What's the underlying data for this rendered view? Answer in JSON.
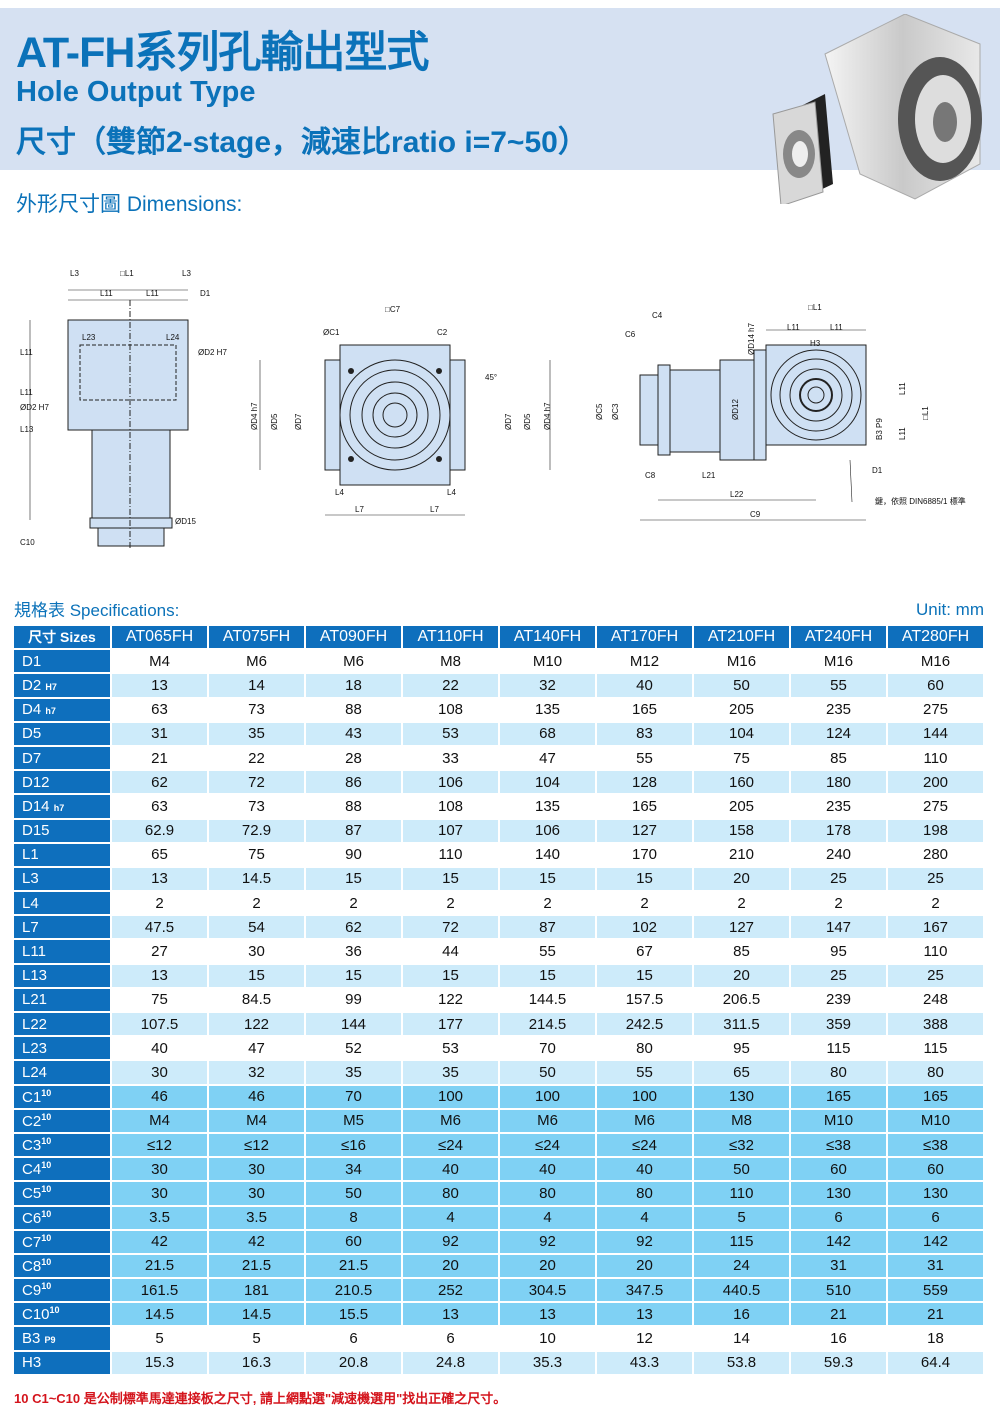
{
  "header": {
    "title": "AT-FH系列孔輸出型式",
    "subtitle": "Hole Output Type",
    "subtitle2": "尺寸（雙節2-stage，減速比ratio i=7~50）"
  },
  "dimensions_heading": "外形尺寸圖 Dimensions:",
  "drawings": {
    "view1": [
      "L3",
      "□L1",
      "L3",
      "L11",
      "L11",
      "D1",
      "L11",
      "L23",
      "L24",
      "ØD2 H7",
      "L11",
      "ØD2 H7",
      "L13",
      "ØD15",
      "C10"
    ],
    "view2": [
      "□C7",
      "ØC1",
      "C2",
      "ØD4 h7",
      "ØD5",
      "ØD7",
      "ØD7",
      "ØD5",
      "ØD4 h7",
      "45°",
      "L4",
      "L4",
      "L7",
      "L7"
    ],
    "view3": [
      "C4",
      "C6",
      "□L1",
      "L11",
      "L11",
      "H3",
      "ØD14 h7",
      "ØC5",
      "ØC3",
      "ØD12",
      "L11",
      "L11",
      "□L1",
      "B3 P9",
      "D1",
      "C8",
      "L21",
      "L22",
      "C9",
      "鍵，依照 DIN6885/1 標準"
    ]
  },
  "specs": {
    "title": "規格表 Specifications:",
    "unit": "Unit: mm",
    "corner": "尺寸 Sizes",
    "models": [
      "AT065FH",
      "AT075FH",
      "AT090FH",
      "AT110FH",
      "AT140FH",
      "AT170FH",
      "AT210FH",
      "AT240FH",
      "AT280FH"
    ],
    "rows": [
      {
        "label": "D1",
        "suffix": "",
        "values": [
          "M4",
          "M6",
          "M6",
          "M8",
          "M10",
          "M12",
          "M16",
          "M16",
          "M16"
        ]
      },
      {
        "label": "D2",
        "suffix": "H7",
        "values": [
          "13",
          "14",
          "18",
          "22",
          "32",
          "40",
          "50",
          "55",
          "60"
        ]
      },
      {
        "label": "D4",
        "suffix": "h7",
        "values": [
          "63",
          "73",
          "88",
          "108",
          "135",
          "165",
          "205",
          "235",
          "275"
        ]
      },
      {
        "label": "D5",
        "suffix": "",
        "values": [
          "31",
          "35",
          "43",
          "53",
          "68",
          "83",
          "104",
          "124",
          "144"
        ]
      },
      {
        "label": "D7",
        "suffix": "",
        "values": [
          "21",
          "22",
          "28",
          "33",
          "47",
          "55",
          "75",
          "85",
          "110"
        ]
      },
      {
        "label": "D12",
        "suffix": "",
        "values": [
          "62",
          "72",
          "86",
          "106",
          "104",
          "128",
          "160",
          "180",
          "200"
        ]
      },
      {
        "label": "D14",
        "suffix": "h7",
        "values": [
          "63",
          "73",
          "88",
          "108",
          "135",
          "165",
          "205",
          "235",
          "275"
        ]
      },
      {
        "label": "D15",
        "suffix": "",
        "values": [
          "62.9",
          "72.9",
          "87",
          "107",
          "106",
          "127",
          "158",
          "178",
          "198"
        ]
      },
      {
        "label": "L1",
        "suffix": "",
        "values": [
          "65",
          "75",
          "90",
          "110",
          "140",
          "170",
          "210",
          "240",
          "280"
        ]
      },
      {
        "label": "L3",
        "suffix": "",
        "values": [
          "13",
          "14.5",
          "15",
          "15",
          "15",
          "15",
          "20",
          "25",
          "25"
        ]
      },
      {
        "label": "L4",
        "suffix": "",
        "values": [
          "2",
          "2",
          "2",
          "2",
          "2",
          "2",
          "2",
          "2",
          "2"
        ]
      },
      {
        "label": "L7",
        "suffix": "",
        "values": [
          "47.5",
          "54",
          "62",
          "72",
          "87",
          "102",
          "127",
          "147",
          "167"
        ]
      },
      {
        "label": "L11",
        "suffix": "",
        "values": [
          "27",
          "30",
          "36",
          "44",
          "55",
          "67",
          "85",
          "95",
          "110"
        ]
      },
      {
        "label": "L13",
        "suffix": "",
        "values": [
          "13",
          "15",
          "15",
          "15",
          "15",
          "15",
          "20",
          "25",
          "25"
        ]
      },
      {
        "label": "L21",
        "suffix": "",
        "values": [
          "75",
          "84.5",
          "99",
          "122",
          "144.5",
          "157.5",
          "206.5",
          "239",
          "248"
        ]
      },
      {
        "label": "L22",
        "suffix": "",
        "values": [
          "107.5",
          "122",
          "144",
          "177",
          "214.5",
          "242.5",
          "311.5",
          "359",
          "388"
        ]
      },
      {
        "label": "L23",
        "suffix": "",
        "values": [
          "40",
          "47",
          "52",
          "53",
          "70",
          "80",
          "95",
          "115",
          "115"
        ]
      },
      {
        "label": "L24",
        "suffix": "",
        "values": [
          "30",
          "32",
          "35",
          "35",
          "50",
          "55",
          "65",
          "80",
          "80"
        ]
      },
      {
        "label": "C1",
        "sup": "10",
        "values": [
          "46",
          "46",
          "70",
          "100",
          "100",
          "100",
          "130",
          "165",
          "165"
        ]
      },
      {
        "label": "C2",
        "sup": "10",
        "values": [
          "M4",
          "M4",
          "M5",
          "M6",
          "M6",
          "M6",
          "M8",
          "M10",
          "M10"
        ]
      },
      {
        "label": "C3",
        "sup": "10",
        "values": [
          "≤12",
          "≤12",
          "≤16",
          "≤24",
          "≤24",
          "≤24",
          "≤32",
          "≤38",
          "≤38"
        ]
      },
      {
        "label": "C4",
        "sup": "10",
        "values": [
          "30",
          "30",
          "34",
          "40",
          "40",
          "40",
          "50",
          "60",
          "60"
        ]
      },
      {
        "label": "C5",
        "sup": "10",
        "values": [
          "30",
          "30",
          "50",
          "80",
          "80",
          "80",
          "110",
          "130",
          "130"
        ]
      },
      {
        "label": "C6",
        "sup": "10",
        "values": [
          "3.5",
          "3.5",
          "8",
          "4",
          "4",
          "4",
          "5",
          "6",
          "6"
        ]
      },
      {
        "label": "C7",
        "sup": "10",
        "values": [
          "42",
          "42",
          "60",
          "92",
          "92",
          "92",
          "115",
          "142",
          "142"
        ]
      },
      {
        "label": "C8",
        "sup": "10",
        "values": [
          "21.5",
          "21.5",
          "21.5",
          "20",
          "20",
          "20",
          "24",
          "31",
          "31"
        ]
      },
      {
        "label": "C9",
        "sup": "10",
        "values": [
          "161.5",
          "181",
          "210.5",
          "252",
          "304.5",
          "347.5",
          "440.5",
          "510",
          "559"
        ]
      },
      {
        "label": "C10",
        "sup": "10",
        "values": [
          "14.5",
          "14.5",
          "15.5",
          "13",
          "13",
          "13",
          "16",
          "21",
          "21"
        ]
      },
      {
        "label": "B3",
        "suffix": "P9",
        "values": [
          "5",
          "5",
          "6",
          "6",
          "10",
          "12",
          "14",
          "16",
          "18"
        ]
      },
      {
        "label": "H3",
        "suffix": "",
        "values": [
          "15.3",
          "16.3",
          "20.8",
          "24.8",
          "35.3",
          "43.3",
          "53.8",
          "59.3",
          "64.4"
        ]
      }
    ]
  },
  "footnote": "10  C1~C10 是公制標準馬達連接板之尺寸,   請上網點選\"減速機選用\"找出正確之尺寸。",
  "colors": {
    "brand_blue": "#0b72b9",
    "band": "#d6e1f2",
    "row_light": "#cdebfa",
    "row_c": "#7fd1f4",
    "note_red": "#d4141c"
  }
}
